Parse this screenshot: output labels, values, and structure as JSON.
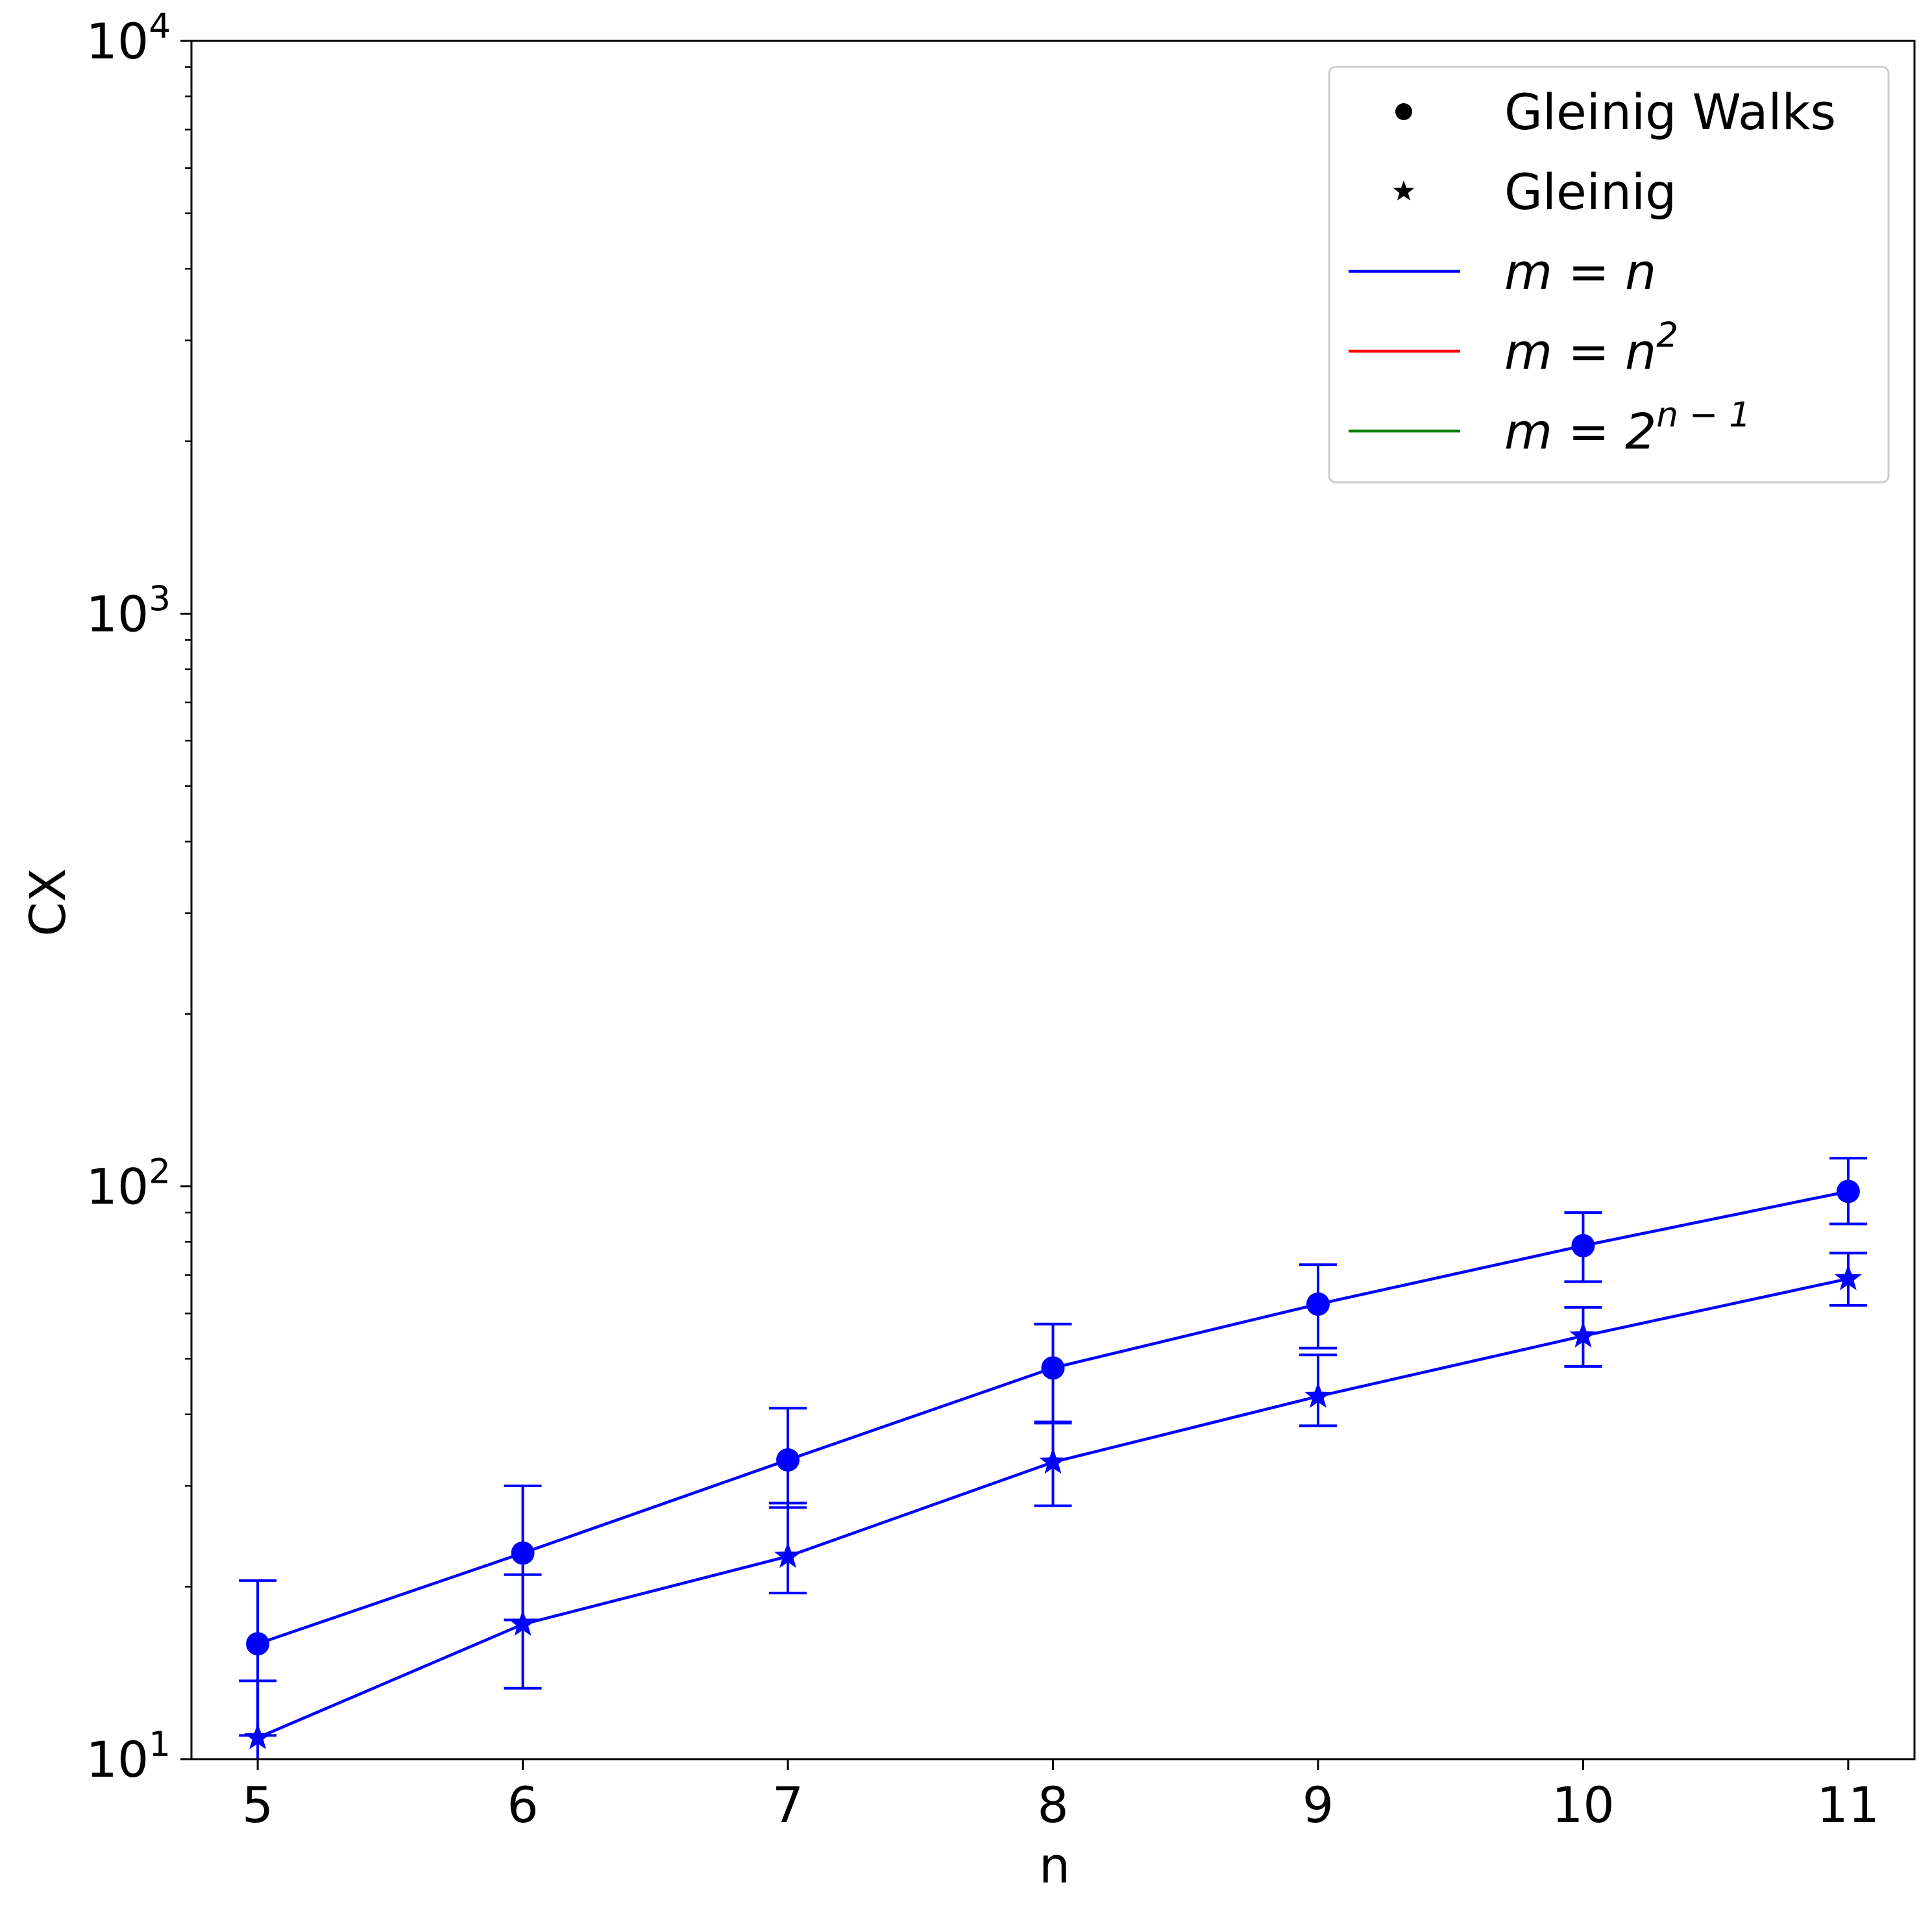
{
  "chart_data": {
    "type": "line",
    "xlabel": "n",
    "ylabel": "CX",
    "x": [
      5,
      6,
      7,
      8,
      9,
      10,
      11
    ],
    "xlim": [
      4.75,
      11.25
    ],
    "ylim": [
      10,
      10000
    ],
    "yscale": "log",
    "x_ticks": [
      "5",
      "6",
      "7",
      "8",
      "9",
      "10",
      "11"
    ],
    "y_ticks": [
      {
        "value": 10,
        "base": "10",
        "exp": "1"
      },
      {
        "value": 100,
        "base": "10",
        "exp": "2"
      },
      {
        "value": 1000,
        "base": "10",
        "exp": "3"
      },
      {
        "value": 10000,
        "base": "10",
        "exp": "4"
      }
    ],
    "grid": false,
    "legend_position": "top-right",
    "legend": [
      {
        "kind": "marker",
        "marker": "circle",
        "label": "Gleinig Walks"
      },
      {
        "kind": "marker",
        "marker": "star",
        "label": "Gleinig"
      },
      {
        "kind": "line",
        "color": "#0000ff",
        "label": "m = n",
        "math_base": "m = n",
        "math_sup": ""
      },
      {
        "kind": "line",
        "color": "#ff0000",
        "label": "m = n²",
        "math_base": "m = n",
        "math_sup": "2"
      },
      {
        "kind": "line",
        "color": "#008000",
        "label": "m = 2ⁿ⁻¹",
        "math_base": "m = 2",
        "math_sup": "n − 1"
      }
    ],
    "series": [
      {
        "method": "Gleinig Walks",
        "marker": "circle",
        "case": "m = n",
        "color": "#0000ff",
        "values": [
          15.9,
          22.9,
          33.3,
          48.2,
          62.3,
          78.8,
          98.0
        ],
        "error_low": [
          11.0,
          17.5,
          27.5,
          38.8,
          52.2,
          68.2,
          86.0
        ],
        "error_high": [
          20.5,
          30.0,
          41.0,
          57.5,
          73.0,
          90.0,
          112.0
        ]
      },
      {
        "method": "Gleinig",
        "marker": "star",
        "case": "m = n",
        "color": "#0000ff",
        "values": [
          10.9,
          17.2,
          22.6,
          33.0,
          43.0,
          54.8,
          69.0
        ],
        "error_low": [
          0,
          13.3,
          19.5,
          27.7,
          38.2,
          48.5,
          62.0
        ],
        "error_high": [
          13.7,
          21.0,
          28.0,
          38.6,
          50.8,
          61.5,
          76.5
        ]
      }
    ]
  }
}
